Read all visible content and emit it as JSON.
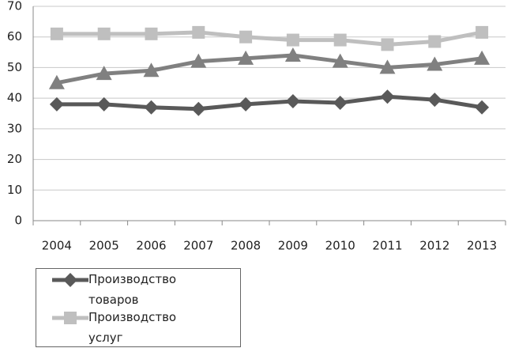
{
  "chart_data": {
    "type": "line",
    "categories": [
      "2004",
      "2005",
      "2006",
      "2007",
      "2008",
      "2009",
      "2010",
      "2011",
      "2012",
      "2013"
    ],
    "series": [
      {
        "name": "Производство товаров",
        "color": "#595959",
        "marker": "diamond",
        "values": [
          38,
          38,
          37,
          36.5,
          38,
          39,
          38.5,
          40.5,
          39.5,
          37
        ]
      },
      {
        "name": "Производство услуг",
        "color": "#bfbfbf",
        "marker": "square",
        "values": [
          61,
          61,
          61,
          61.5,
          60,
          59,
          59,
          57.5,
          58.5,
          61.5
        ]
      },
      {
        "color": "#808080",
        "marker": "triangle",
        "values": [
          45,
          48,
          49,
          52,
          53,
          54,
          52,
          50,
          51,
          53
        ]
      }
    ],
    "ylim": [
      0,
      70
    ],
    "yticks": [
      0,
      10,
      20,
      30,
      40,
      50,
      60,
      70
    ],
    "grid": true
  }
}
